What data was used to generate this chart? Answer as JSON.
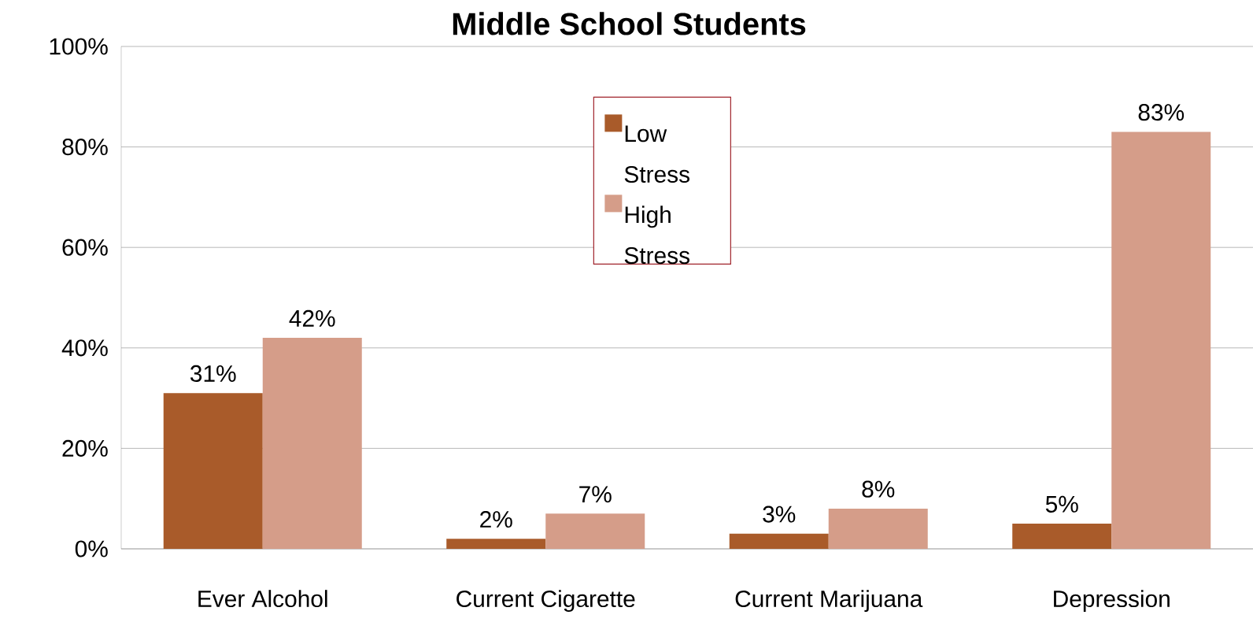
{
  "chart_data": {
    "type": "bar",
    "title": "Middle School Students",
    "categories": [
      "Ever Alcohol",
      "Current Cigarette",
      "Current Marijuana",
      "Depression"
    ],
    "series": [
      {
        "name": "Low Stress",
        "color": "#a95b2a",
        "values": [
          31,
          2,
          3,
          5
        ],
        "value_labels": [
          "31%",
          "2%",
          "3%",
          "5%"
        ]
      },
      {
        "name": "High Stress",
        "color": "#d59d89",
        "values": [
          42,
          7,
          8,
          83
        ],
        "value_labels": [
          "42%",
          "7%",
          "8%",
          "83%"
        ]
      }
    ],
    "ylim": [
      0,
      100
    ],
    "yticks": [
      {
        "value": 0,
        "label": "0%"
      },
      {
        "value": 20,
        "label": "20%"
      },
      {
        "value": 40,
        "label": "40%"
      },
      {
        "value": 60,
        "label": "60%"
      },
      {
        "value": 80,
        "label": "80%"
      },
      {
        "value": 100,
        "label": "100%"
      }
    ],
    "grid": "y",
    "legend": "top"
  }
}
